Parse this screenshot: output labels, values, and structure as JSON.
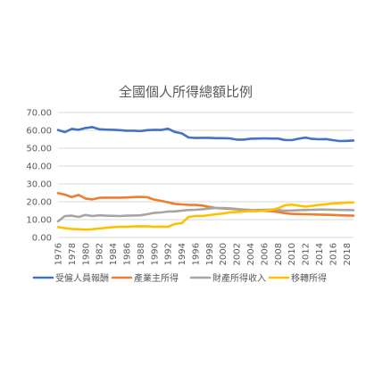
{
  "chart_data": {
    "type": "line",
    "title": "全國個人所得總額比例",
    "xlabel": "",
    "ylabel": "",
    "ylim": [
      0,
      70
    ],
    "yticks": [
      "0.00",
      "10.00",
      "20.00",
      "30.00",
      "40.00",
      "50.00",
      "60.00",
      "70.00"
    ],
    "x": [
      1976,
      1977,
      1978,
      1979,
      1980,
      1981,
      1982,
      1983,
      1984,
      1985,
      1986,
      1987,
      1988,
      1989,
      1990,
      1991,
      1992,
      1993,
      1994,
      1995,
      1996,
      1997,
      1998,
      1999,
      2000,
      2001,
      2002,
      2003,
      2004,
      2005,
      2006,
      2007,
      2008,
      2009,
      2010,
      2011,
      2012,
      2013,
      2014,
      2015,
      2016,
      2017,
      2018,
      2019
    ],
    "xtick_labels": [
      "1976",
      "1978",
      "1980",
      "1982",
      "1984",
      "1986",
      "1988",
      "1990",
      "1992",
      "1994",
      "1996",
      "1998",
      "2000",
      "2002",
      "2004",
      "2006",
      "2008",
      "2010",
      "2012",
      "2014",
      "2016",
      "2018"
    ],
    "grid": true,
    "legend_position": "bottom",
    "series": [
      {
        "name": "受僱人員報酬",
        "color": "#4472C4",
        "values": [
          60.2,
          59.0,
          60.8,
          60.3,
          61.3,
          61.8,
          60.6,
          60.4,
          60.3,
          60.1,
          59.8,
          59.8,
          59.6,
          60.1,
          60.3,
          60.2,
          60.9,
          59.1,
          58.3,
          56.0,
          55.7,
          55.8,
          55.8,
          55.6,
          55.6,
          55.5,
          54.8,
          54.8,
          55.3,
          55.4,
          55.5,
          55.4,
          55.4,
          54.6,
          54.5,
          55.3,
          55.9,
          55.2,
          55.0,
          55.1,
          54.5,
          54.0,
          54.1,
          54.3
        ]
      },
      {
        "name": "產業主所得",
        "color": "#ED7D31",
        "values": [
          24.8,
          24.0,
          22.6,
          23.8,
          21.8,
          21.3,
          22.2,
          22.3,
          22.3,
          22.3,
          22.4,
          22.6,
          22.7,
          22.5,
          21.2,
          20.5,
          19.7,
          18.8,
          18.5,
          18.3,
          18.2,
          17.9,
          17.1,
          16.5,
          16.2,
          16.0,
          15.8,
          15.6,
          15.4,
          15.1,
          14.9,
          14.7,
          14.3,
          13.6,
          13.2,
          13.1,
          13.0,
          12.9,
          12.8,
          12.7,
          12.6,
          12.4,
          12.3,
          12.2
        ]
      },
      {
        "name": "財產所得收入",
        "color": "#A5A5A5",
        "values": [
          9.0,
          12.0,
          12.2,
          11.5,
          12.6,
          12.0,
          12.4,
          12.2,
          12.1,
          12.0,
          12.2,
          12.3,
          12.4,
          13.0,
          13.8,
          14.0,
          14.5,
          14.6,
          15.0,
          15.4,
          15.5,
          15.8,
          16.2,
          16.5,
          16.5,
          16.3,
          16.0,
          15.5,
          15.3,
          15.4,
          15.5,
          15.6,
          15.4,
          15.0,
          15.1,
          15.3,
          15.4,
          15.5,
          15.6,
          15.6,
          15.5,
          15.4,
          15.4,
          15.3
        ]
      },
      {
        "name": "移轉所得",
        "color": "#FFC000",
        "values": [
          5.8,
          5.2,
          4.8,
          4.6,
          4.4,
          4.6,
          5.0,
          5.4,
          5.8,
          6.0,
          6.0,
          6.2,
          6.3,
          6.2,
          6.0,
          6.1,
          6.0,
          7.5,
          8.0,
          11.5,
          12.0,
          12.0,
          12.5,
          13.0,
          13.4,
          14.0,
          14.3,
          14.5,
          14.8,
          14.7,
          15.0,
          15.4,
          16.3,
          18.0,
          18.4,
          17.8,
          17.3,
          17.7,
          18.2,
          18.6,
          19.0,
          19.2,
          19.5,
          19.6
        ]
      }
    ]
  }
}
